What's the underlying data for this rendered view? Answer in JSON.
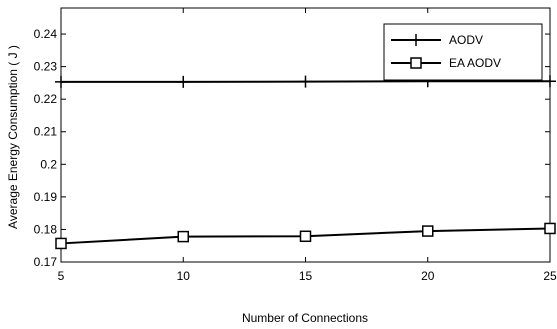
{
  "chart_data": {
    "type": "line",
    "title": "",
    "xlabel": "Number of Connections",
    "ylabel": "Average Energy Consumption ( J )",
    "x": [
      5,
      10,
      15,
      20,
      25
    ],
    "xlim": [
      5,
      25
    ],
    "ylim": [
      0.17,
      0.248
    ],
    "xticks": [
      "5",
      "10",
      "15",
      "20",
      "25"
    ],
    "yticks": [
      "0.17",
      "0.18",
      "0.19",
      "0.2",
      "0.21",
      "0.22",
      "0.23",
      "0.24"
    ],
    "ytick_values": [
      0.17,
      0.18,
      0.19,
      0.2,
      0.21,
      0.22,
      0.23,
      0.24
    ],
    "grid": false,
    "legend_position": "top-right",
    "series": [
      {
        "name": "AODV",
        "marker": "plus",
        "color": "#000000",
        "values": [
          0.2253,
          0.2253,
          0.2254,
          0.2255,
          0.2255
        ]
      },
      {
        "name": "EA AODV",
        "marker": "square",
        "color": "#000000",
        "values": [
          0.1757,
          0.1778,
          0.1779,
          0.1795,
          0.1803
        ]
      }
    ]
  }
}
